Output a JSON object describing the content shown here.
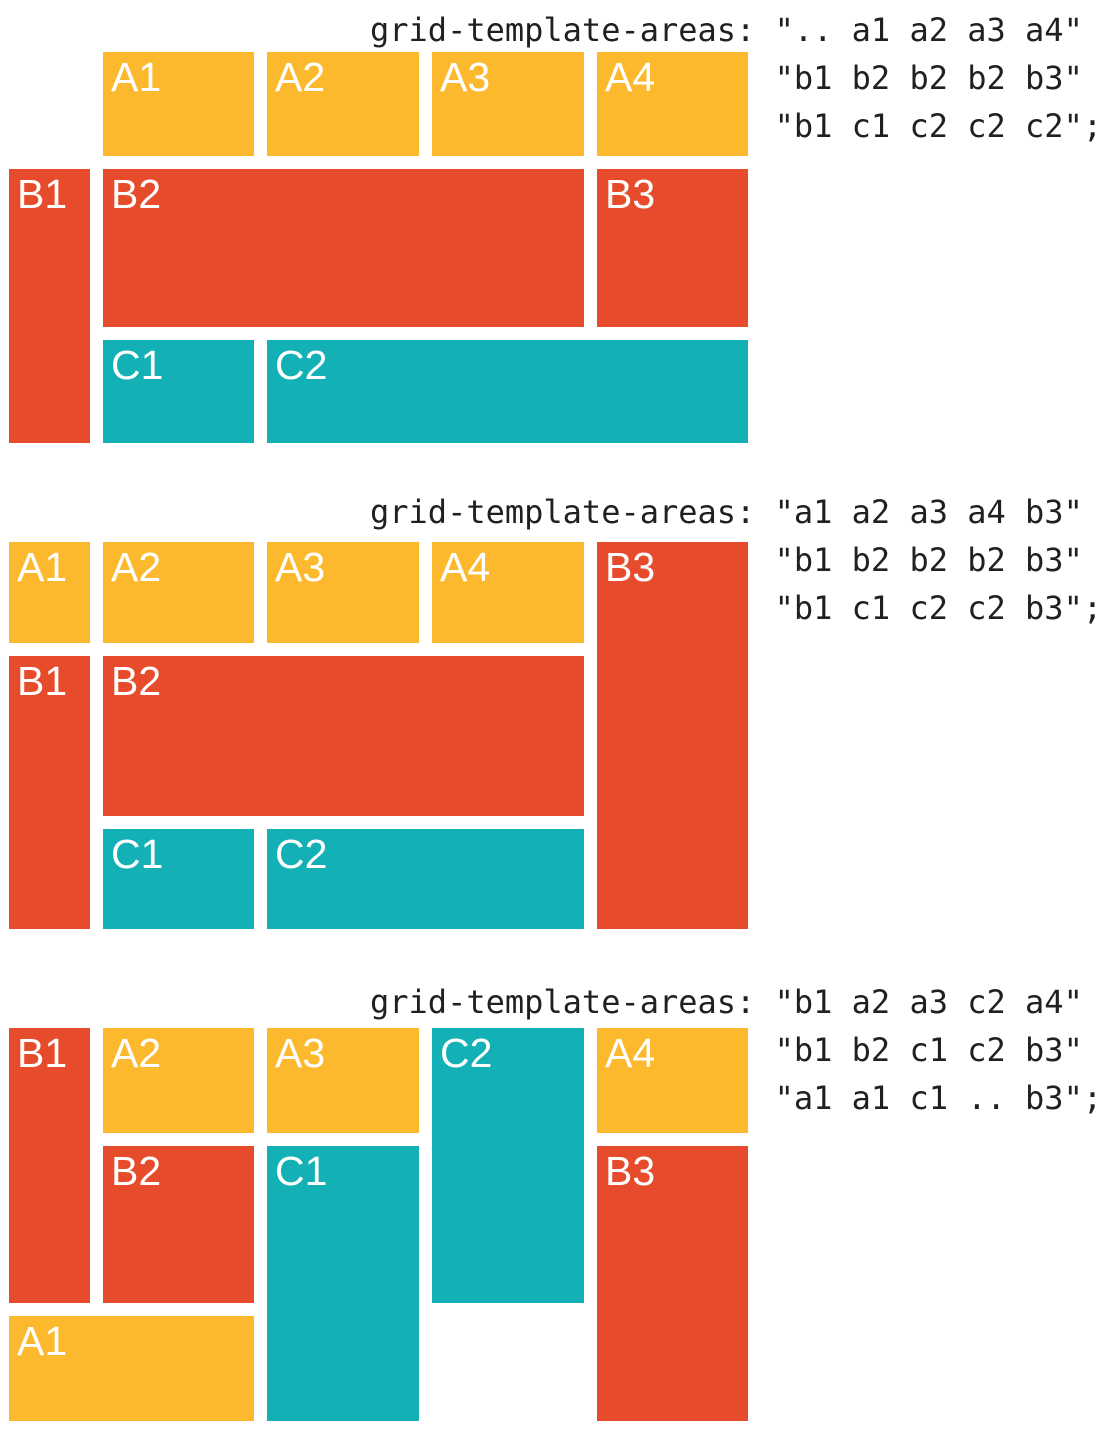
{
  "colors": {
    "orange": "#fdb92e",
    "red": "#e64b2c",
    "teal": "#13b1b5",
    "code_text": "#231f20",
    "label_text": "#ffffff",
    "background": "#ffffff"
  },
  "diagrams": [
    {
      "code_lines": [
        "grid-template-areas: \".. a1 a2 a3 a4\"",
        "\"b1 b2 b2 b2 b3\"",
        "\"b1 c1 c2 c2 c2\";"
      ],
      "areas": [
        ".. a1 a2 a3 a4",
        "b1 b2 b2 b2 b3",
        "b1 c1 c2 c2 c2"
      ],
      "blocks": [
        {
          "label": "A1",
          "area": "a1",
          "color": "orange"
        },
        {
          "label": "A2",
          "area": "a2",
          "color": "orange"
        },
        {
          "label": "A3",
          "area": "a3",
          "color": "orange"
        },
        {
          "label": "A4",
          "area": "a4",
          "color": "orange"
        },
        {
          "label": "B1",
          "area": "b1",
          "color": "red"
        },
        {
          "label": "B2",
          "area": "b2",
          "color": "red"
        },
        {
          "label": "B3",
          "area": "b3",
          "color": "red"
        },
        {
          "label": "C1",
          "area": "c1",
          "color": "teal"
        },
        {
          "label": "C2",
          "area": "c2",
          "color": "teal"
        }
      ]
    },
    {
      "code_lines": [
        "grid-template-areas: \"a1 a2 a3 a4 b3\"",
        "\"b1 b2 b2 b2 b3\"",
        "\"b1 c1 c2 c2 b3\";"
      ],
      "areas": [
        "a1 a2 a3 a4 b3",
        "b1 b2 b2 b2 b3",
        "b1 c1 c2 c2 b3"
      ],
      "blocks": [
        {
          "label": "A1",
          "area": "a1",
          "color": "orange"
        },
        {
          "label": "A2",
          "area": "a2",
          "color": "orange"
        },
        {
          "label": "A3",
          "area": "a3",
          "color": "orange"
        },
        {
          "label": "A4",
          "area": "a4",
          "color": "orange"
        },
        {
          "label": "B3",
          "area": "b3",
          "color": "red"
        },
        {
          "label": "B1",
          "area": "b1",
          "color": "red"
        },
        {
          "label": "B2",
          "area": "b2",
          "color": "red"
        },
        {
          "label": "C1",
          "area": "c1",
          "color": "teal"
        },
        {
          "label": "C2",
          "area": "c2",
          "color": "teal"
        }
      ]
    },
    {
      "code_lines": [
        "grid-template-areas: \"b1 a2 a3 c2 a4\"",
        "\"b1 b2 c1 c2 b3\"",
        "\"a1 a1 c1 .. b3\";"
      ],
      "areas": [
        "b1 a2 a3 c2 a4",
        "b1 b2 c1 c2 b3",
        "a1 a1 c1 .. b3"
      ],
      "blocks": [
        {
          "label": "B1",
          "area": "b1",
          "color": "red"
        },
        {
          "label": "A2",
          "area": "a2",
          "color": "orange"
        },
        {
          "label": "A3",
          "area": "a3",
          "color": "orange"
        },
        {
          "label": "C2",
          "area": "c2",
          "color": "teal"
        },
        {
          "label": "A4",
          "area": "a4",
          "color": "orange"
        },
        {
          "label": "B2",
          "area": "b2",
          "color": "red"
        },
        {
          "label": "C1",
          "area": "c1",
          "color": "teal"
        },
        {
          "label": "B3",
          "area": "b3",
          "color": "red"
        },
        {
          "label": "A1",
          "area": "a1",
          "color": "orange"
        }
      ]
    }
  ]
}
